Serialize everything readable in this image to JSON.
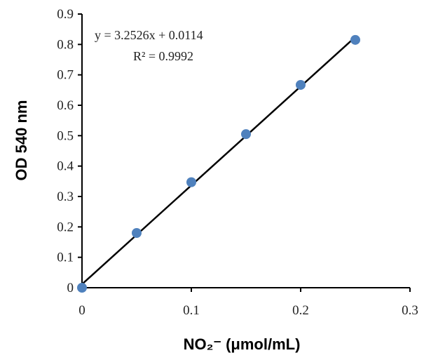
{
  "chart_data": {
    "type": "scatter",
    "x_label": "NO₂⁻ (μmol/mL)",
    "y_label": "OD 540 nm",
    "annotations": [
      "y = 3.2526x + 0.0114",
      "R² = 0.9992"
    ],
    "series": [
      {
        "color": "#4f81bd",
        "x": [
          0,
          0.05,
          0.1,
          0.15,
          0.2,
          0.25
        ],
        "values": [
          0,
          0.18,
          0.347,
          0.505,
          0.667,
          0.815
        ]
      }
    ],
    "trendline": {
      "slope": 3.2526,
      "intercept": 0.0114,
      "color": "#000000"
    },
    "xlim": [
      0,
      0.3
    ],
    "xticks": [
      0,
      0.1,
      0.2,
      0.3
    ],
    "ylim": [
      0,
      0.9
    ],
    "yticks": [
      0,
      0.1,
      0.2,
      0.3,
      0.4,
      0.5,
      0.6,
      0.7,
      0.8,
      0.9
    ],
    "grid": false
  }
}
